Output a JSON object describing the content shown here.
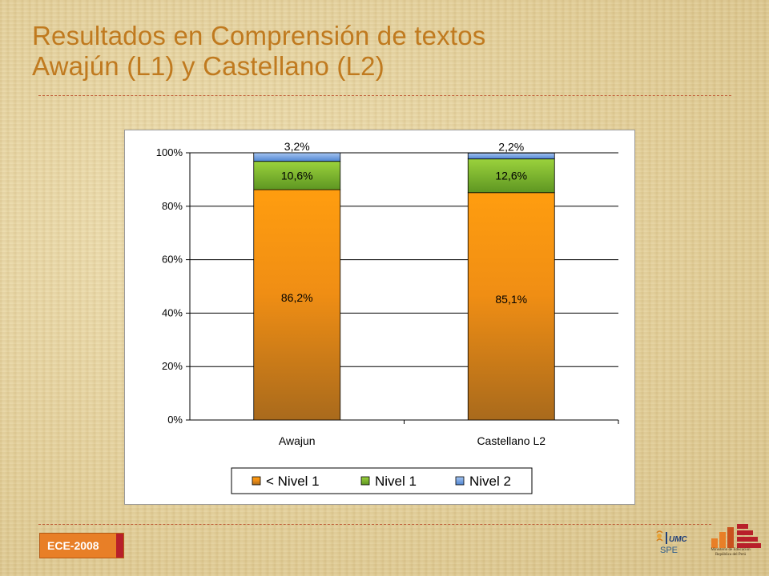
{
  "slide": {
    "title_line1": "Resultados en Comprensión de textos",
    "title_line2": "Awajún (L1) y Castellano (L2)",
    "badge_label": "ECE-2008",
    "logo_umc_text": "UMC",
    "logo_spe_text": "SPE",
    "logo_minedu_line1": "Ministerio de Educación",
    "logo_minedu_line2": "República del Perú"
  },
  "colors": {
    "title": "#c07a1f",
    "below_level1": "#f39a10",
    "level1": "#79b32c",
    "level2": "#6b9be0",
    "badge": "#e87f27"
  },
  "chart_data": {
    "type": "bar",
    "stacked": true,
    "categories": [
      "Awajun",
      "Castellano L2"
    ],
    "series": [
      {
        "name": "< Nivel 1",
        "values": [
          86.2,
          85.1
        ],
        "labels": [
          "86,2%",
          "85,1%"
        ]
      },
      {
        "name": "Nivel 1",
        "values": [
          10.6,
          12.6
        ],
        "labels": [
          "10,6%",
          "12,6%"
        ]
      },
      {
        "name": "Nivel 2",
        "values": [
          3.2,
          2.2
        ],
        "labels": [
          "3,2%",
          "2,2%"
        ]
      }
    ],
    "ylim": [
      0,
      100
    ],
    "yticks": [
      "0%",
      "20%",
      "40%",
      "60%",
      "80%",
      "100%"
    ],
    "grid": true,
    "legend_position": "bottom"
  }
}
